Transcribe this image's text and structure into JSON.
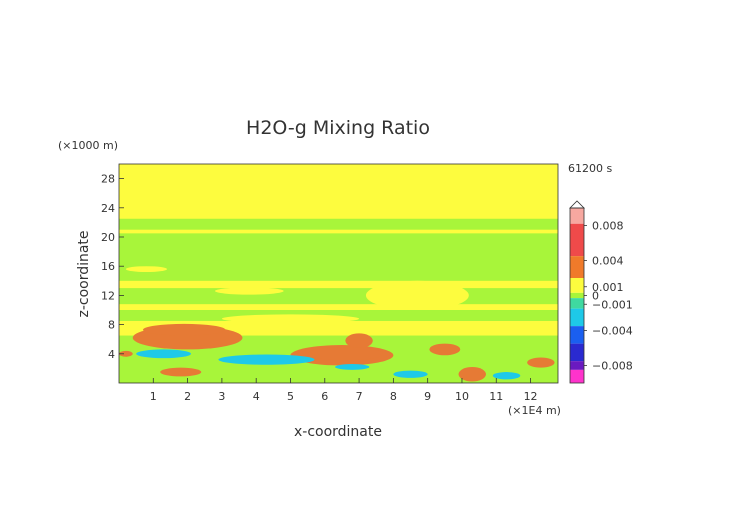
{
  "chart_data": {
    "type": "heatmap",
    "title": "H2O-g Mixing Ratio",
    "xlabel": "x-coordinate",
    "ylabel": "z-coordinate",
    "x_unit": "(×1E4 m)",
    "y_unit": "(×1000 m)",
    "time_label": "61200 s",
    "xlim": [
      0,
      12.8
    ],
    "ylim": [
      0,
      30
    ],
    "x_ticks": [
      1,
      2,
      3,
      4,
      5,
      6,
      7,
      8,
      9,
      10,
      11,
      12
    ],
    "y_ticks": [
      4,
      8,
      12,
      16,
      20,
      24,
      28
    ],
    "colorbar": {
      "range": [
        -0.01,
        0.01
      ],
      "tick_values": [
        0.008,
        0.004,
        0.001,
        0,
        -0.001,
        -0.004,
        -0.008
      ],
      "tick_labels": [
        "0.008",
        "0.004",
        "0.001",
        "0",
        "−0.001",
        "−0.004",
        "−0.008"
      ]
    },
    "background_level": 0.0,
    "layers": [
      {
        "z": [
          0,
          22.5
        ],
        "value": 0.0
      },
      {
        "z": [
          22.5,
          30
        ],
        "value": 0.0006
      },
      {
        "z": [
          20.5,
          21.0
        ],
        "value": 0.0006
      },
      {
        "z": [
          13.0,
          14.0
        ],
        "value": 0.0006
      },
      {
        "z": [
          10.0,
          10.8
        ],
        "value": 0.0006
      },
      {
        "z": [
          6.5,
          8.5
        ],
        "value": 0.0006
      }
    ],
    "features": [
      {
        "x": 2.0,
        "z": 6.2,
        "rx": 1.6,
        "rz": 1.6,
        "value": 0.003
      },
      {
        "x": 1.9,
        "z": 7.3,
        "rx": 1.2,
        "rz": 0.8,
        "value": 0.004
      },
      {
        "x": 6.5,
        "z": 3.8,
        "rx": 1.5,
        "rz": 1.4,
        "value": 0.003
      },
      {
        "x": 6.6,
        "z": 4.0,
        "rx": 1.1,
        "rz": 0.9,
        "value": 0.004
      },
      {
        "x": 7.0,
        "z": 5.8,
        "rx": 0.4,
        "rz": 1.0,
        "value": 0.003
      },
      {
        "x": 9.5,
        "z": 4.6,
        "rx": 0.45,
        "rz": 0.8,
        "value": 0.004
      },
      {
        "x": 10.3,
        "z": 1.2,
        "rx": 0.4,
        "rz": 1.0,
        "value": 0.003
      },
      {
        "x": 12.3,
        "z": 2.8,
        "rx": 0.4,
        "rz": 0.7,
        "value": 0.003
      },
      {
        "x": 0.2,
        "z": 4.0,
        "rx": 0.2,
        "rz": 0.4,
        "value": 0.003
      },
      {
        "x": 1.8,
        "z": 1.5,
        "rx": 0.6,
        "rz": 0.6,
        "value": 0.003
      },
      {
        "x": 4.3,
        "z": 3.2,
        "rx": 1.4,
        "rz": 0.7,
        "value": -0.0015
      },
      {
        "x": 1.3,
        "z": 4.0,
        "rx": 0.8,
        "rz": 0.6,
        "value": -0.0015
      },
      {
        "x": 8.5,
        "z": 1.2,
        "rx": 0.5,
        "rz": 0.5,
        "value": -0.0015
      },
      {
        "x": 11.3,
        "z": 1.0,
        "rx": 0.4,
        "rz": 0.5,
        "value": -0.0015
      },
      {
        "x": 6.8,
        "z": 2.2,
        "rx": 0.5,
        "rz": 0.4,
        "value": -0.0015
      },
      {
        "x": 5.0,
        "z": 8.8,
        "rx": 2.0,
        "rz": 0.6,
        "value": 0.0006
      },
      {
        "x": 8.7,
        "z": 12.0,
        "rx": 1.5,
        "rz": 2.0,
        "value": 0.0006
      },
      {
        "x": 3.8,
        "z": 12.6,
        "rx": 1.0,
        "rz": 0.5,
        "value": 0.0006
      },
      {
        "x": 0.8,
        "z": 15.6,
        "rx": 0.6,
        "rz": 0.4,
        "value": 0.0006
      }
    ]
  }
}
